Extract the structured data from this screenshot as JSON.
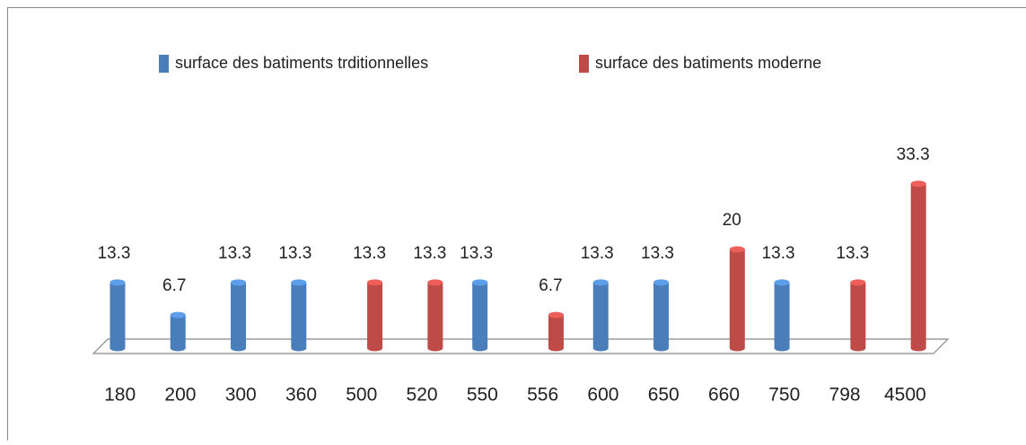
{
  "chart_data": {
    "type": "bar",
    "categories": [
      "180",
      "200",
      "300",
      "360",
      "500",
      "520",
      "550",
      "556",
      "600",
      "650",
      "660",
      "750",
      "798",
      "4500"
    ],
    "series": [
      {
        "name": "surface des batiments trditionnelles",
        "color": "#4a7ebb",
        "values": [
          13.3,
          6.7,
          13.3,
          13.3,
          null,
          null,
          13.3,
          null,
          13.3,
          13.3,
          null,
          13.3,
          null,
          null
        ]
      },
      {
        "name": "surface des batiments moderne",
        "color": "#be4b48",
        "values": [
          null,
          null,
          null,
          null,
          13.3,
          13.3,
          null,
          6.7,
          null,
          null,
          20,
          null,
          13.3,
          33.3
        ]
      }
    ]
  }
}
